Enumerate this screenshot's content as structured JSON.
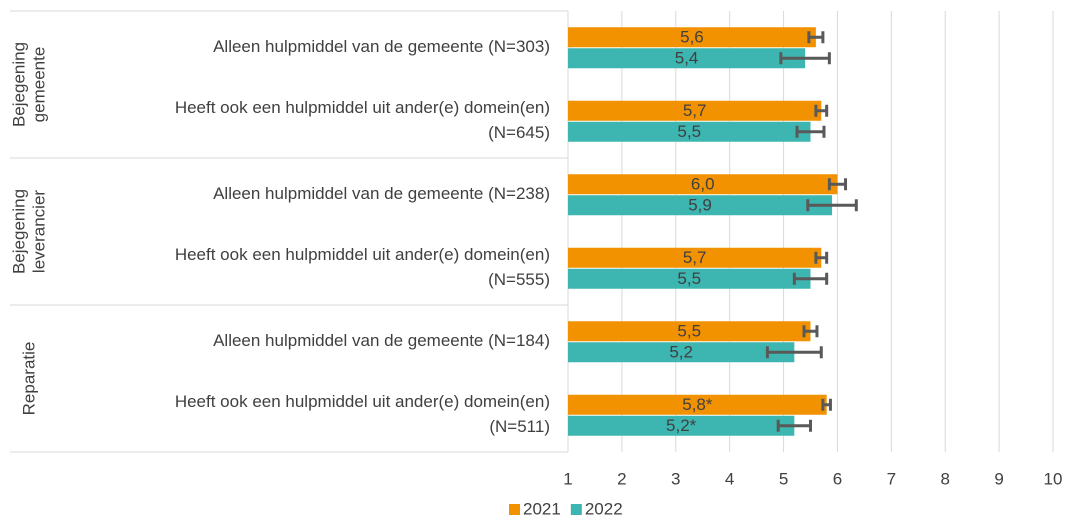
{
  "chart_data": {
    "type": "bar",
    "orientation": "horizontal",
    "groups": [
      {
        "lines": [
          "Bejegening",
          "gemeente"
        ],
        "size": 2
      },
      {
        "lines": [
          "Bejegening",
          "leverancier"
        ],
        "size": 2
      },
      {
        "lines": [
          "Reparatie"
        ],
        "size": 2
      }
    ],
    "categories": [
      [
        "Alleen hulpmiddel van de gemeente (N=303)"
      ],
      [
        "Heeft ook een hulpmiddel uit ander(e) domein(en)",
        "(N=645)"
      ],
      [
        "Alleen hulpmiddel van de gemeente (N=238)"
      ],
      [
        "Heeft ook een hulpmiddel uit ander(e) domein(en)",
        "(N=555)"
      ],
      [
        "Alleen hulpmiddel van de gemeente (N=184)"
      ],
      [
        "Heeft ook een hulpmiddel uit ander(e) domein(en)",
        "(N=511)"
      ]
    ],
    "series": [
      {
        "name": "2021",
        "color": "#f39200",
        "values": [
          5.6,
          5.7,
          6.0,
          5.7,
          5.5,
          5.8
        ],
        "value_labels": [
          "5,6",
          "5,7",
          "6,0",
          "5,7",
          "5,5",
          "5,8*"
        ],
        "errors": [
          0.13,
          0.1,
          0.15,
          0.1,
          0.12,
          0.07
        ]
      },
      {
        "name": "2022",
        "color": "#3db5b0",
        "values": [
          5.4,
          5.5,
          5.9,
          5.5,
          5.2,
          5.2
        ],
        "value_labels": [
          "5,4",
          "5,5",
          "5,9",
          "5,5",
          "5,2",
          "5,2*"
        ],
        "errors": [
          0.45,
          0.25,
          0.45,
          0.3,
          0.5,
          0.3
        ]
      }
    ],
    "xlim": [
      1,
      10
    ],
    "xticks": [
      1,
      2,
      3,
      4,
      5,
      6,
      7,
      8,
      9,
      10
    ],
    "grid": true,
    "legend": "bottom"
  }
}
